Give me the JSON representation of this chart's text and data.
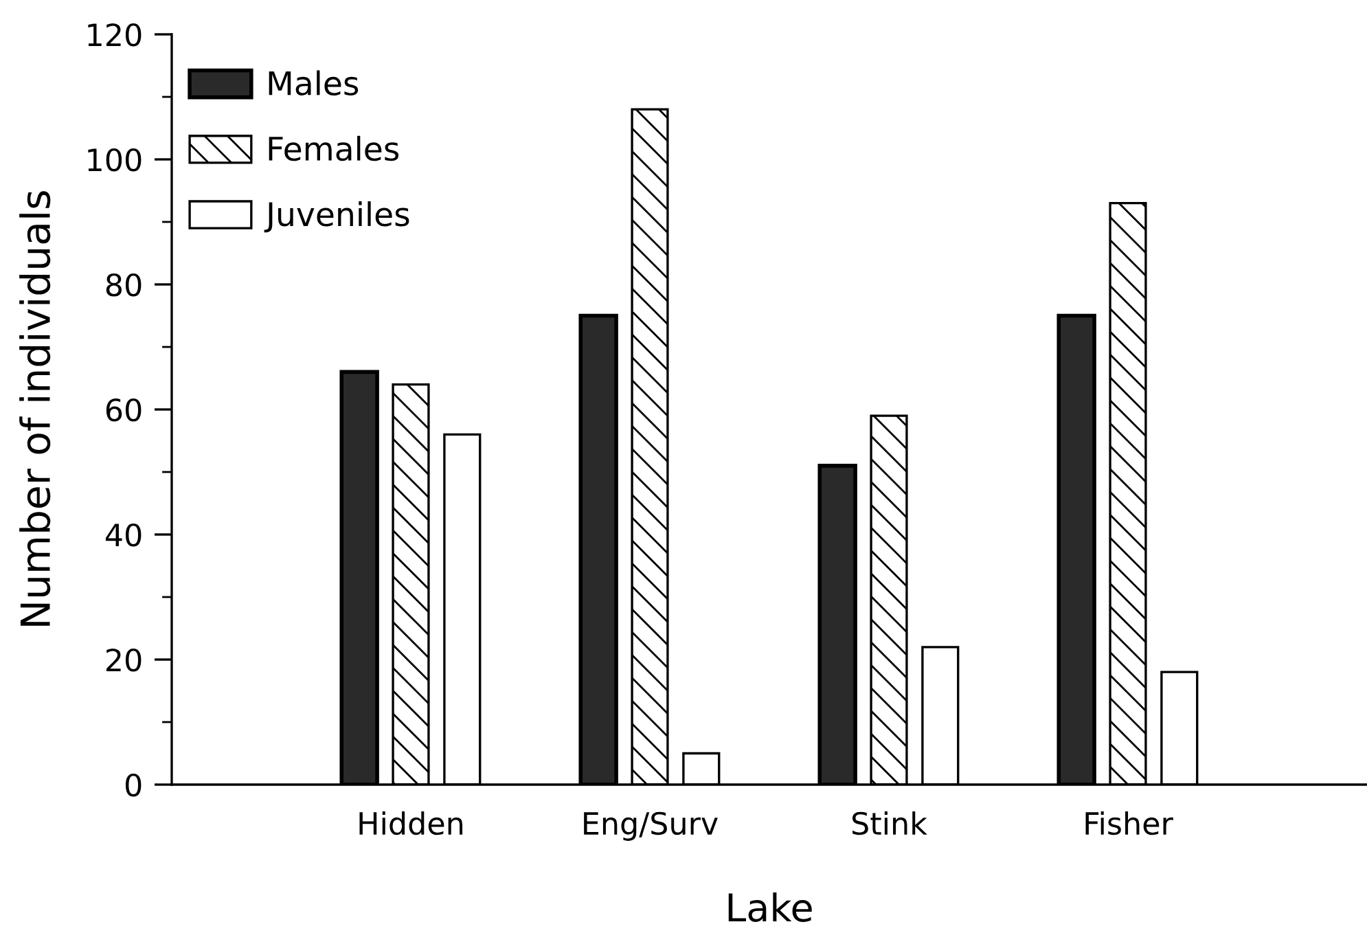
{
  "chart_data": {
    "type": "bar",
    "xlabel": "Lake",
    "ylabel": "Number of individuals",
    "categories": [
      "Hidden",
      "Eng/Surv",
      "Stink",
      "Fisher"
    ],
    "series": [
      {
        "name": "Males",
        "color": "#2a2a2a",
        "values": [
          66,
          75,
          51,
          75
        ]
      },
      {
        "name": "Females",
        "color": "#000000",
        "values": [
          64,
          108,
          59,
          93
        ]
      },
      {
        "name": "Juveniles",
        "color": "#ffffff",
        "values": [
          56,
          5,
          22,
          18
        ]
      }
    ],
    "ylim": [
      0,
      120
    ],
    "yticks": [
      0,
      20,
      40,
      60,
      80,
      100,
      120
    ],
    "legend": "top left",
    "grid": false
  }
}
